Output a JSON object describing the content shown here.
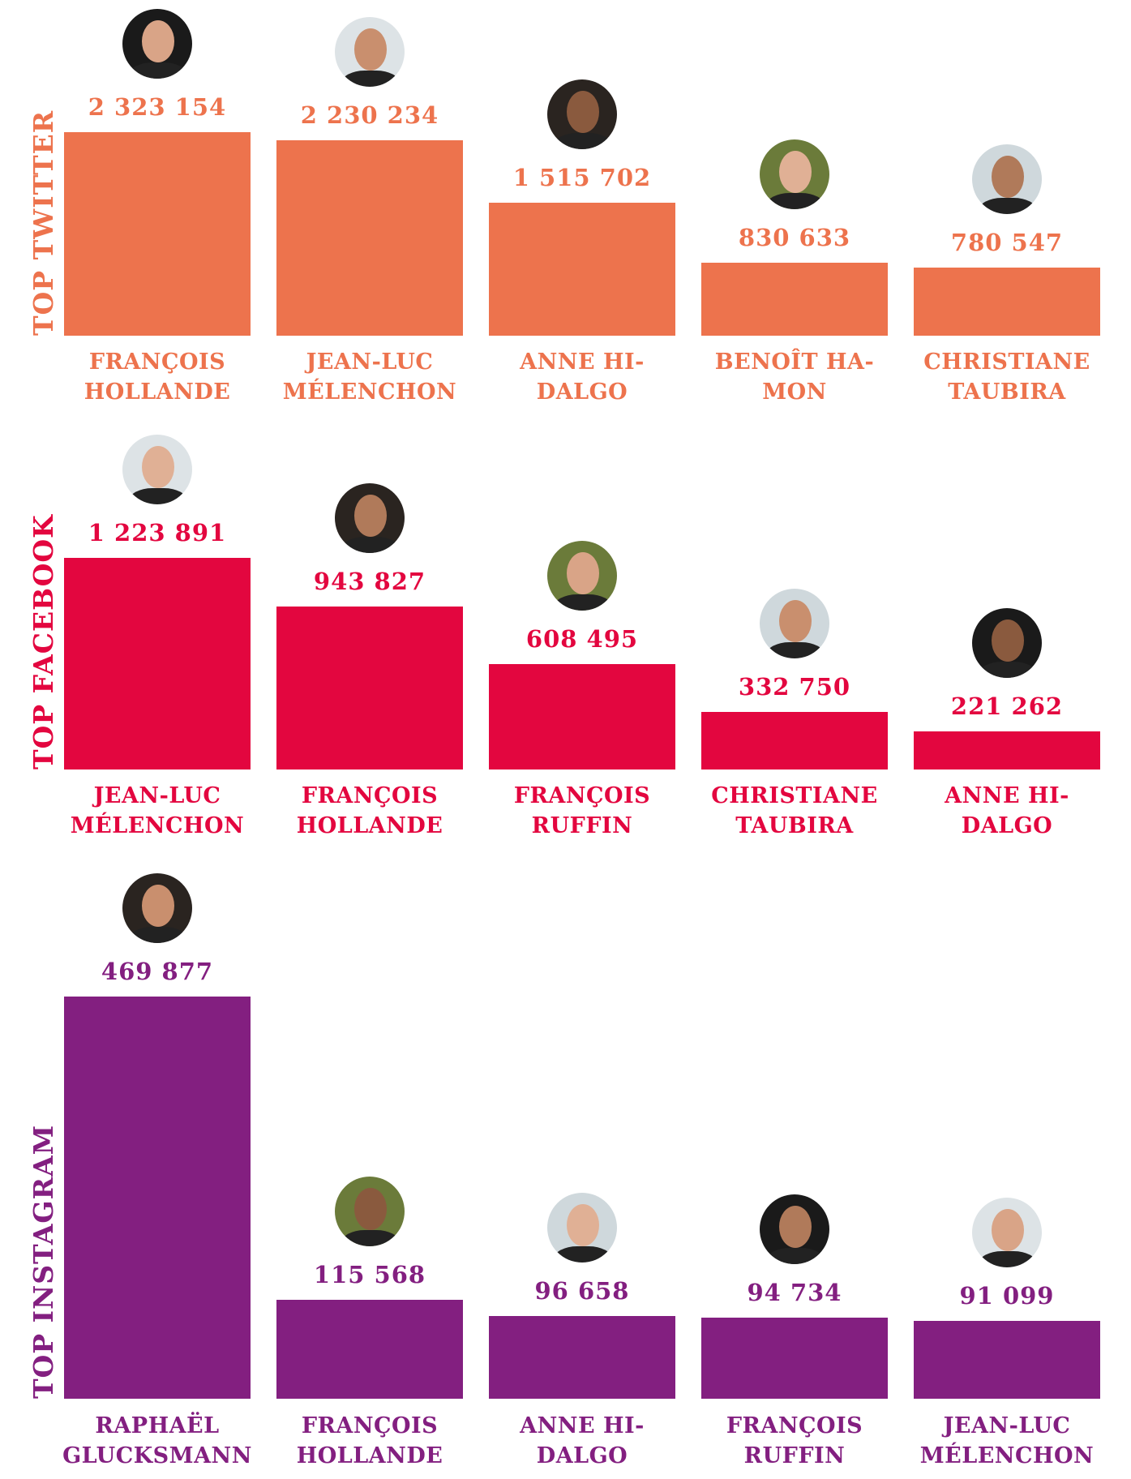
{
  "colors": {
    "twitter": "#ED734D",
    "facebook": "#E3063F",
    "instagram": "#831F80"
  },
  "chart_data": [
    {
      "type": "bar",
      "title": "TOP TWITTER",
      "categories": [
        [
          "FRANÇOIS",
          "HOLLANDE"
        ],
        [
          "JEAN-LUC",
          "MÉLENCHON"
        ],
        [
          "ANNE HI-",
          "DALGO"
        ],
        [
          "BENOÎT HA-",
          "MON"
        ],
        [
          "CHRISTIANE",
          "TAUBIRA"
        ]
      ],
      "values": [
        2323154,
        2230234,
        1515702,
        830633,
        780547
      ],
      "value_labels": [
        "2 323 154",
        "2 230 234",
        "1 515 702",
        "830 633",
        "780 547"
      ]
    },
    {
      "type": "bar",
      "title": "TOP FACEBOOK",
      "categories": [
        [
          "JEAN-LUC",
          "MÉLENCHON"
        ],
        [
          "FRANÇOIS",
          "HOLLANDE"
        ],
        [
          "FRANÇOIS",
          "RUFFIN"
        ],
        [
          "CHRISTIANE",
          "TAUBIRA"
        ],
        [
          "ANNE HI-",
          "DALGO"
        ]
      ],
      "values": [
        1223891,
        943827,
        608495,
        332750,
        221262
      ],
      "value_labels": [
        "1 223 891",
        "943 827",
        "608 495",
        "332 750",
        "221 262"
      ]
    },
    {
      "type": "bar",
      "title": "TOP INSTAGRAM",
      "categories": [
        [
          "RAPHAËL",
          "GLUCKSMANN"
        ],
        [
          "FRANÇOIS",
          "HOLLANDE"
        ],
        [
          "ANNE HI-",
          "DALGO"
        ],
        [
          "FRANÇOIS",
          "RUFFIN"
        ],
        [
          "JEAN-LUC",
          "MÉLENCHON"
        ]
      ],
      "values": [
        469877,
        115568,
        96658,
        94734,
        91099
      ],
      "value_labels": [
        "469 877",
        "115 568",
        "96 658",
        "94 734",
        "91 099"
      ]
    }
  ]
}
